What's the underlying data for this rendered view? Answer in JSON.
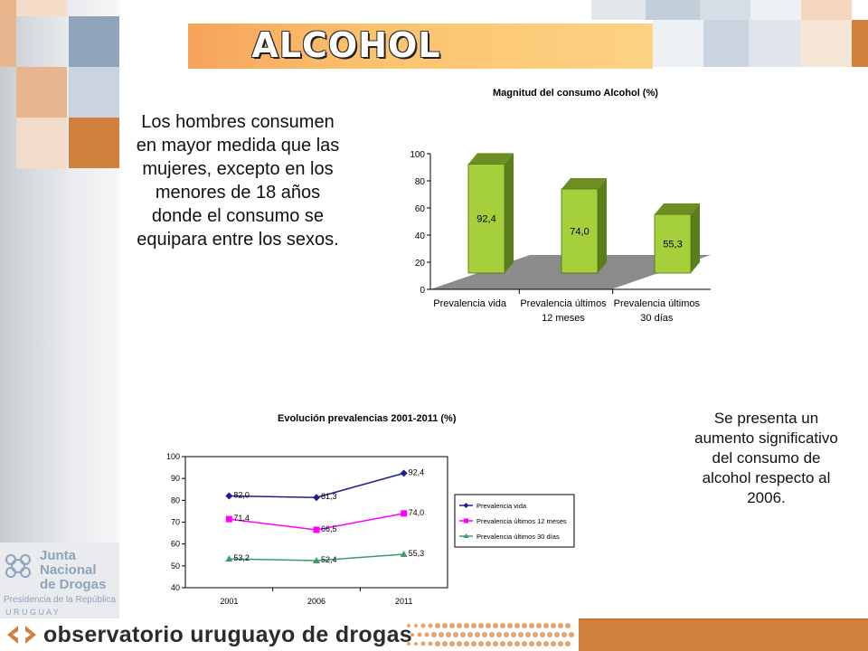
{
  "slide": {
    "title": "ALCOHOL",
    "text_left": "Los hombres consumen en mayor medida que las mujeres, excepto en los menores de 18 años donde el consumo se equipara entre los sexos.",
    "text_right": "Se presenta un aumento significativo del consumo de alcohol respecto al 2006."
  },
  "logo": {
    "line1": "Junta",
    "line2": "Nacional",
    "line3": "de Drogas",
    "line4": "Presidencia de la República",
    "line5": "U R U G U A Y"
  },
  "footer": {
    "brand": "observatorio uruguayo de drogas"
  },
  "colors": {
    "bar_green": "#a6cf3c",
    "series_vida": "#1f1f8f",
    "series_12m": "#ff00ff",
    "series_30d": "#3d9a6a",
    "orange": "#d2813c",
    "steel": "#8fa4ba"
  },
  "chart_data": [
    {
      "type": "bar",
      "title": "Magnitud del consumo Alcohol (%)",
      "categories": [
        "Prevalencia vida",
        "Prevalencia últimos 12 meses",
        "Prevalencia últimos 30 días"
      ],
      "category_lines": [
        [
          "Prevalencia vida"
        ],
        [
          "Prevalencia últimos",
          "12 meses"
        ],
        [
          "Prevalencia últimos",
          "30 días"
        ]
      ],
      "values": [
        92.4,
        74.0,
        55.3
      ],
      "value_labels": [
        "92,4",
        "74,0",
        "55,3"
      ],
      "ylim": [
        0,
        100
      ],
      "yticks": [
        0,
        20,
        40,
        60,
        80,
        100
      ],
      "style": "3d"
    },
    {
      "type": "line",
      "title": "Evolución prevalencias 2001-2011 (%)",
      "x": [
        "2001",
        "2006",
        "2011"
      ],
      "ylim": [
        40,
        100
      ],
      "yticks": [
        40,
        50,
        60,
        70,
        80,
        90,
        100
      ],
      "legend": "right",
      "series": [
        {
          "name": "Prevalencia vida",
          "legend_label": "Prevalencia vida",
          "values": [
            82.0,
            81.3,
            92.4
          ],
          "labels": [
            "82,0",
            "81,3",
            "92,4"
          ],
          "marker": "diamond",
          "color": "#1f1f8f"
        },
        {
          "name": "Prevalencia últimos 12 meses",
          "legend_label": "Prevalencia últimos 12 meses",
          "values": [
            71.4,
            66.5,
            74.0
          ],
          "labels": [
            "71,4",
            "66,5",
            "74,0"
          ],
          "marker": "square",
          "color": "#ff00ff"
        },
        {
          "name": "Prevalencia últimos 30 días",
          "legend_label": "Prevalencia últimos 30 días",
          "values": [
            53.2,
            52.4,
            55.3
          ],
          "labels": [
            "53,2",
            "52,4",
            "55,3"
          ],
          "marker": "triangle",
          "color": "#3d9a6a"
        }
      ]
    }
  ]
}
